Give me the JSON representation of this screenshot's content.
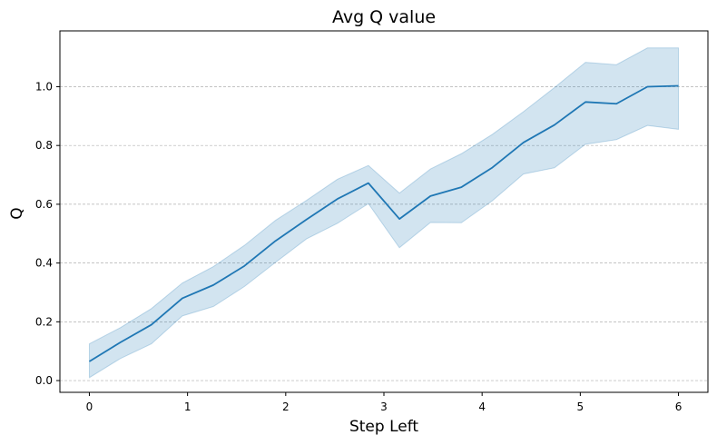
{
  "chart_data": {
    "type": "line",
    "title": "Avg Q value",
    "xlabel": "Step Left",
    "ylabel": "Q",
    "xlim": [
      -0.3,
      6.3
    ],
    "ylim": [
      -0.04,
      1.19
    ],
    "xticks": [
      0,
      1,
      2,
      3,
      4,
      5,
      6
    ],
    "yticks": [
      0.0,
      0.2,
      0.4,
      0.6,
      0.8,
      1.0
    ],
    "xtick_labels": [
      "0",
      "1",
      "2",
      "3",
      "4",
      "5",
      "6"
    ],
    "ytick_labels": [
      "0.0",
      "0.2",
      "0.4",
      "0.6",
      "0.8",
      "1.0"
    ],
    "grid": "y-dashed",
    "series": [
      {
        "x": [
          0,
          0.316,
          0.632,
          0.947,
          1.263,
          1.579,
          1.895,
          2.211,
          2.526,
          2.842,
          3.158,
          3.474,
          3.789,
          4.105,
          4.421,
          4.737,
          5.053,
          5.368,
          5.684,
          6.0
        ],
        "values": [
          0.065,
          0.13,
          0.19,
          0.28,
          0.325,
          0.39,
          0.475,
          0.548,
          0.618,
          0.672,
          0.55,
          0.628,
          0.658,
          0.725,
          0.81,
          0.87,
          0.948,
          0.942,
          1.0,
          1.003
        ],
        "lower": [
          0.01,
          0.075,
          0.125,
          0.22,
          0.252,
          0.32,
          0.402,
          0.482,
          0.535,
          0.602,
          0.452,
          0.538,
          0.537,
          0.612,
          0.703,
          0.724,
          0.804,
          0.82,
          0.868,
          0.855
        ],
        "upper": [
          0.125,
          0.18,
          0.245,
          0.332,
          0.388,
          0.46,
          0.545,
          0.613,
          0.685,
          0.732,
          0.638,
          0.72,
          0.772,
          0.838,
          0.915,
          0.997,
          1.083,
          1.075,
          1.132,
          1.132
        ],
        "color": "#1f77b4",
        "band_color": "#1f77b4"
      }
    ]
  }
}
